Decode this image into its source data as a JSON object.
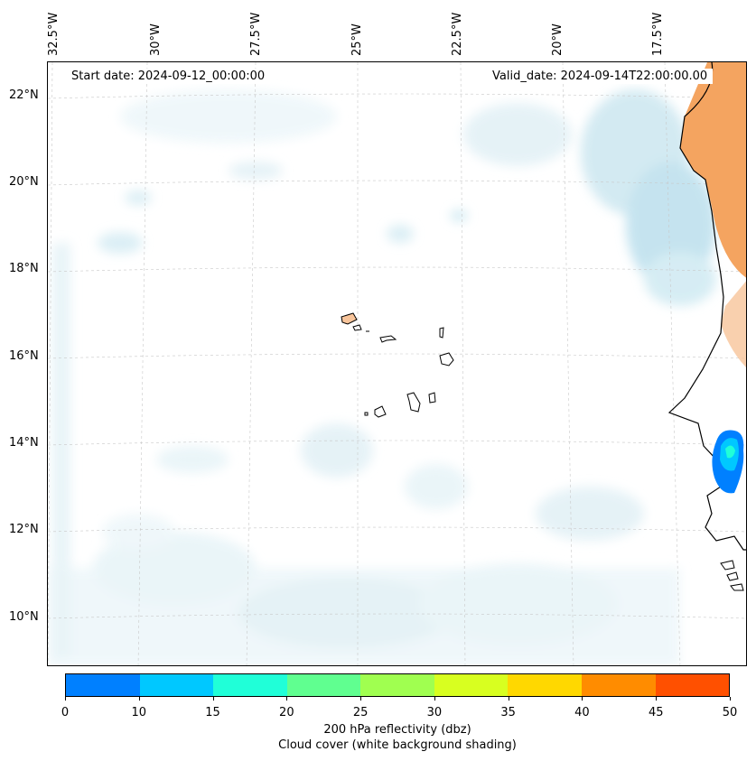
{
  "map": {
    "start_date": "Start date: 2024-09-12_00:00:00",
    "valid_date": "Valid_date: 2024-09-14T22:00:00.00",
    "longitude_labels": [
      "32.5°W",
      "30°W",
      "27.5°W",
      "25°W",
      "22.5°W",
      "20°W",
      "17.5°W"
    ],
    "latitude_labels": [
      "22°N",
      "20°N",
      "18°N",
      "16°N",
      "14°N",
      "12°N",
      "10°N"
    ]
  },
  "colorbar": {
    "ticks": [
      "0",
      "10",
      "15",
      "20",
      "25",
      "30",
      "35",
      "40",
      "45",
      "50"
    ],
    "colors": [
      "#0080ff",
      "#00c8ff",
      "#20ffd8",
      "#60ff90",
      "#a0ff50",
      "#d8ff20",
      "#ffd800",
      "#ff8c00",
      "#ff5000"
    ],
    "label_line1": "200 hPa reflectivity (dbz)",
    "label_line2": "Cloud cover (white background shading)"
  },
  "colors": {
    "land": "#f4a460",
    "cloud_light": "#e6f4f8",
    "cloud_mid": "#cfe8f1",
    "cloud_dark": "#a8d6e8"
  }
}
